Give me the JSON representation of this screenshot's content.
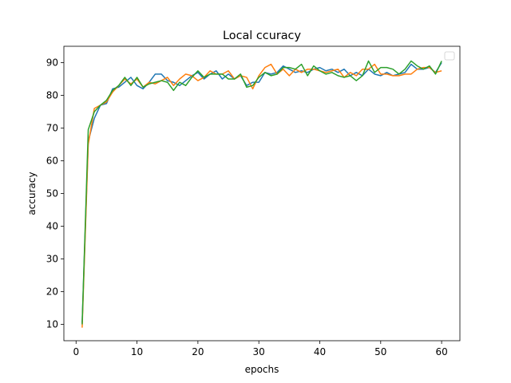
{
  "chart_data": {
    "type": "line",
    "title": "Local ccuracy",
    "xlabel": "epochs",
    "ylabel": "accuracy",
    "xlim": [
      -2,
      63
    ],
    "ylim": [
      5,
      95
    ],
    "xticks": [
      0,
      10,
      20,
      30,
      40,
      50,
      60
    ],
    "yticks": [
      10,
      20,
      30,
      40,
      50,
      60,
      70,
      80,
      90
    ],
    "grid": false,
    "legend": "top-right",
    "x": [
      1,
      2,
      3,
      4,
      5,
      6,
      7,
      8,
      9,
      10,
      11,
      12,
      13,
      14,
      15,
      16,
      17,
      18,
      19,
      20,
      21,
      22,
      23,
      24,
      25,
      26,
      27,
      28,
      29,
      30,
      31,
      32,
      33,
      34,
      35,
      36,
      37,
      38,
      39,
      40,
      41,
      42,
      43,
      44,
      45,
      46,
      47,
      48,
      49,
      50,
      51,
      52,
      53,
      54,
      55,
      56,
      57,
      58,
      59,
      60
    ],
    "series": [
      {
        "color": "#1f77b4",
        "values": [
          10.5,
          66,
          73,
          77,
          77.5,
          82,
          82.5,
          84,
          85.5,
          83,
          82,
          84,
          86.5,
          86.5,
          84.5,
          84,
          83,
          84.5,
          86,
          87,
          85,
          86.5,
          87.5,
          85,
          86.5,
          85,
          86,
          83,
          84,
          84,
          87,
          86.5,
          87,
          89,
          88,
          87,
          87.5,
          87,
          88,
          88.5,
          87.5,
          88,
          87,
          88,
          86,
          87,
          86,
          88,
          86.5,
          86,
          87,
          86,
          86.5,
          87,
          89.5,
          88,
          88,
          88.5,
          87,
          90
        ]
      },
      {
        "color": "#ff7f0e",
        "values": [
          9,
          65,
          76,
          77,
          78,
          81,
          83,
          85,
          83.5,
          85,
          82.5,
          84,
          83.5,
          84.5,
          85.5,
          83,
          85,
          86.5,
          86,
          84.5,
          85.5,
          87.5,
          86.5,
          86.5,
          87.5,
          85,
          86,
          85.5,
          82,
          86,
          88.5,
          89.5,
          86.5,
          88,
          86,
          88,
          87,
          88,
          88,
          87.5,
          87,
          87.5,
          88,
          85.5,
          87,
          86,
          88,
          88,
          89.5,
          86.5,
          86.5,
          86,
          86,
          86.5,
          86.5,
          88,
          88.5,
          88.5,
          87,
          87.5
        ]
      },
      {
        "color": "#2ca02c",
        "values": [
          10,
          69.5,
          75,
          77,
          78.5,
          81.5,
          83,
          85.5,
          83,
          85.5,
          82.5,
          83.5,
          84,
          84.5,
          84,
          81.5,
          84,
          83,
          85.5,
          87.5,
          85.5,
          86.5,
          86.5,
          86.5,
          85,
          85,
          86.5,
          82.5,
          83,
          85.5,
          87,
          86,
          86.5,
          88.5,
          88.5,
          88,
          89.5,
          86,
          89,
          87.5,
          86.5,
          87,
          86,
          85.5,
          86,
          84.5,
          86,
          90.5,
          87,
          88.5,
          88.5,
          88,
          86.5,
          88,
          90.5,
          89,
          88,
          89,
          86.5,
          90.5
        ]
      }
    ]
  }
}
